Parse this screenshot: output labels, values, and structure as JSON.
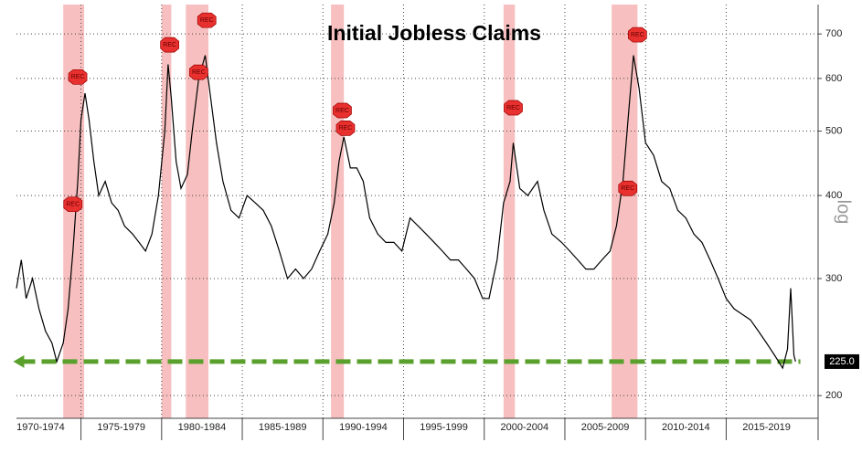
{
  "chart_data": {
    "type": "line",
    "title": "Initial Jobless Claims",
    "y_axis_label": "log",
    "y_scale": "log",
    "grid": true,
    "xlim": [
      1971.0,
      2020.7
    ],
    "ylim": [
      178,
      775
    ],
    "yticks": [
      200,
      300,
      400,
      500,
      600,
      700
    ],
    "xticks": [
      {
        "value": 1972.5,
        "label": "1970-1974"
      },
      {
        "value": 1977.5,
        "label": "1975-1979"
      },
      {
        "value": 1982.5,
        "label": "1980-1984"
      },
      {
        "value": 1987.5,
        "label": "1985-1989"
      },
      {
        "value": 1992.5,
        "label": "1990-1994"
      },
      {
        "value": 1997.5,
        "label": "1995-1999"
      },
      {
        "value": 2002.5,
        "label": "2000-2004"
      },
      {
        "value": 2007.5,
        "label": "2005-2009"
      },
      {
        "value": 2012.5,
        "label": "2010-2014"
      },
      {
        "value": 2017.5,
        "label": "2015-2019"
      }
    ],
    "x_dividers": [
      1975,
      1980,
      1985,
      1990,
      1995,
      2000,
      2005,
      2010,
      2015
    ],
    "shaded_periods": [
      [
        1973.9,
        1975.2
      ],
      [
        1980.0,
        1980.6
      ],
      [
        1981.5,
        1982.9
      ],
      [
        1990.5,
        1991.3
      ],
      [
        2001.2,
        2001.9
      ],
      [
        2007.9,
        2009.5
      ]
    ],
    "shade_color": "#f4a9a9",
    "series": [
      {
        "name": "Initial Jobless Claims",
        "color": "#000000",
        "x": [
          1971.0,
          1971.3,
          1971.6,
          1972.0,
          1972.4,
          1972.8,
          1973.2,
          1973.5,
          1973.9,
          1974.2,
          1974.5,
          1974.8,
          1975.0,
          1975.25,
          1975.5,
          1975.8,
          1976.1,
          1976.5,
          1976.9,
          1977.3,
          1977.7,
          1978.2,
          1978.6,
          1979.0,
          1979.4,
          1979.8,
          1980.2,
          1980.4,
          1980.6,
          1980.9,
          1981.2,
          1981.6,
          1981.9,
          1982.3,
          1982.7,
          1983.0,
          1983.4,
          1983.8,
          1984.3,
          1984.8,
          1985.3,
          1985.8,
          1986.3,
          1986.8,
          1987.3,
          1987.8,
          1988.3,
          1988.8,
          1989.3,
          1989.8,
          1990.3,
          1990.7,
          1991.0,
          1991.3,
          1991.7,
          1992.1,
          1992.5,
          1992.9,
          1993.4,
          1993.9,
          1994.4,
          1994.9,
          1995.4,
          1995.9,
          1996.4,
          1996.9,
          1997.4,
          1997.9,
          1998.4,
          1998.9,
          1999.4,
          1999.9,
          2000.3,
          2000.8,
          2001.2,
          2001.6,
          2001.8,
          2002.2,
          2002.7,
          2003.3,
          2003.7,
          2004.2,
          2004.8,
          2005.3,
          2005.8,
          2006.3,
          2006.8,
          2007.3,
          2007.8,
          2008.2,
          2008.6,
          2009.0,
          2009.25,
          2009.6,
          2010.0,
          2010.5,
          2011.0,
          2011.5,
          2012.0,
          2012.5,
          2013.0,
          2013.5,
          2014.0,
          2014.5,
          2015.0,
          2015.5,
          2016.0,
          2016.5,
          2017.0,
          2017.5,
          2018.0,
          2018.5,
          2018.8,
          2019.0,
          2019.2,
          2019.3
        ],
        "values": [
          290,
          320,
          280,
          300,
          270,
          250,
          240,
          225,
          240,
          270,
          330,
          420,
          520,
          570,
          520,
          450,
          400,
          420,
          390,
          380,
          360,
          350,
          340,
          330,
          350,
          400,
          500,
          630,
          560,
          450,
          410,
          430,
          500,
          600,
          650,
          570,
          480,
          420,
          380,
          370,
          400,
          390,
          380,
          360,
          330,
          300,
          310,
          300,
          310,
          330,
          350,
          390,
          450,
          490,
          440,
          440,
          420,
          370,
          350,
          340,
          340,
          330,
          370,
          360,
          350,
          340,
          330,
          320,
          320,
          310,
          300,
          280,
          280,
          320,
          390,
          420,
          480,
          410,
          400,
          420,
          380,
          350,
          340,
          330,
          320,
          310,
          310,
          320,
          330,
          360,
          420,
          550,
          650,
          580,
          480,
          460,
          420,
          410,
          380,
          370,
          350,
          340,
          320,
          300,
          280,
          270,
          265,
          260,
          250,
          240,
          230,
          220,
          235,
          290,
          230,
          225
        ]
      }
    ],
    "reference_line": {
      "value": 225,
      "from": 1970.8,
      "to": 2019.6,
      "color": "#5aa02c"
    },
    "last_value": 225,
    "last_value_label": "225.0",
    "markers": [
      {
        "x": 1974.5,
        "value": 388,
        "label": "REC"
      },
      {
        "x": 1974.8,
        "value": 603,
        "label": "REC"
      },
      {
        "x": 1980.5,
        "value": 674,
        "label": "REC"
      },
      {
        "x": 1982.3,
        "value": 613,
        "label": "REC"
      },
      {
        "x": 1982.8,
        "value": 734,
        "label": "REC"
      },
      {
        "x": 1991.2,
        "value": 537,
        "label": "REC"
      },
      {
        "x": 1991.4,
        "value": 505,
        "label": "REC"
      },
      {
        "x": 2001.8,
        "value": 542,
        "label": "REC"
      },
      {
        "x": 2008.9,
        "value": 410,
        "label": "REC"
      },
      {
        "x": 2009.5,
        "value": 698,
        "label": "REC"
      }
    ],
    "marker_color": "#e8312f"
  }
}
